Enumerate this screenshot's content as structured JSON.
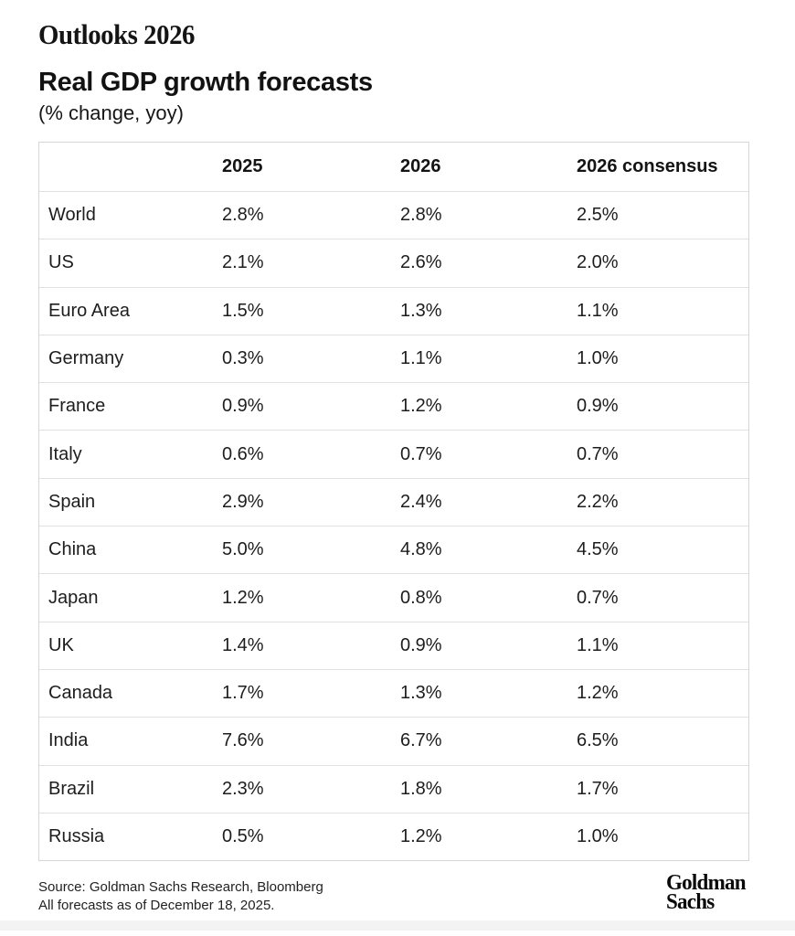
{
  "page": {
    "eyebrow": "Outlooks 2026",
    "title": "Real GDP growth forecasts",
    "subtitle": "(% change, yoy)"
  },
  "chart_data": {
    "type": "table",
    "title": "Real GDP growth forecasts",
    "subtitle": "(% change, yoy)",
    "columns": [
      "",
      "2025",
      "2026",
      "2026 consensus"
    ],
    "rows": [
      [
        "World",
        "2.8%",
        "2.8%",
        "2.5%"
      ],
      [
        "US",
        "2.1%",
        "2.6%",
        "2.0%"
      ],
      [
        "Euro Area",
        "1.5%",
        "1.3%",
        "1.1%"
      ],
      [
        "Germany",
        "0.3%",
        "1.1%",
        "1.0%"
      ],
      [
        "France",
        "0.9%",
        "1.2%",
        "0.9%"
      ],
      [
        "Italy",
        "0.6%",
        "0.7%",
        "0.7%"
      ],
      [
        "Spain",
        "2.9%",
        "2.4%",
        "2.2%"
      ],
      [
        "China",
        "5.0%",
        "4.8%",
        "4.5%"
      ],
      [
        "Japan",
        "1.2%",
        "0.8%",
        "0.7%"
      ],
      [
        "UK",
        "1.4%",
        "0.9%",
        "1.1%"
      ],
      [
        "Canada",
        "1.7%",
        "1.3%",
        "1.2%"
      ],
      [
        "India",
        "7.6%",
        "6.7%",
        "6.5%"
      ],
      [
        "Brazil",
        "2.3%",
        "1.8%",
        "1.7%"
      ],
      [
        "Russia",
        "0.5%",
        "1.2%",
        "1.0%"
      ]
    ]
  },
  "table": {
    "headers": [
      "2025",
      "2026",
      "2026 consensus"
    ]
  },
  "footer": {
    "source_line1": "Source: Goldman Sachs Research, Bloomberg",
    "source_line2": "All forecasts as of December 18, 2025.",
    "logo_line1": "Goldman",
    "logo_line2": "Sachs"
  },
  "colors": {
    "background": "#ffffff",
    "text": "#1a1a1a",
    "table_border": "#d6d6d6",
    "row_divider": "#e1e1e1"
  }
}
